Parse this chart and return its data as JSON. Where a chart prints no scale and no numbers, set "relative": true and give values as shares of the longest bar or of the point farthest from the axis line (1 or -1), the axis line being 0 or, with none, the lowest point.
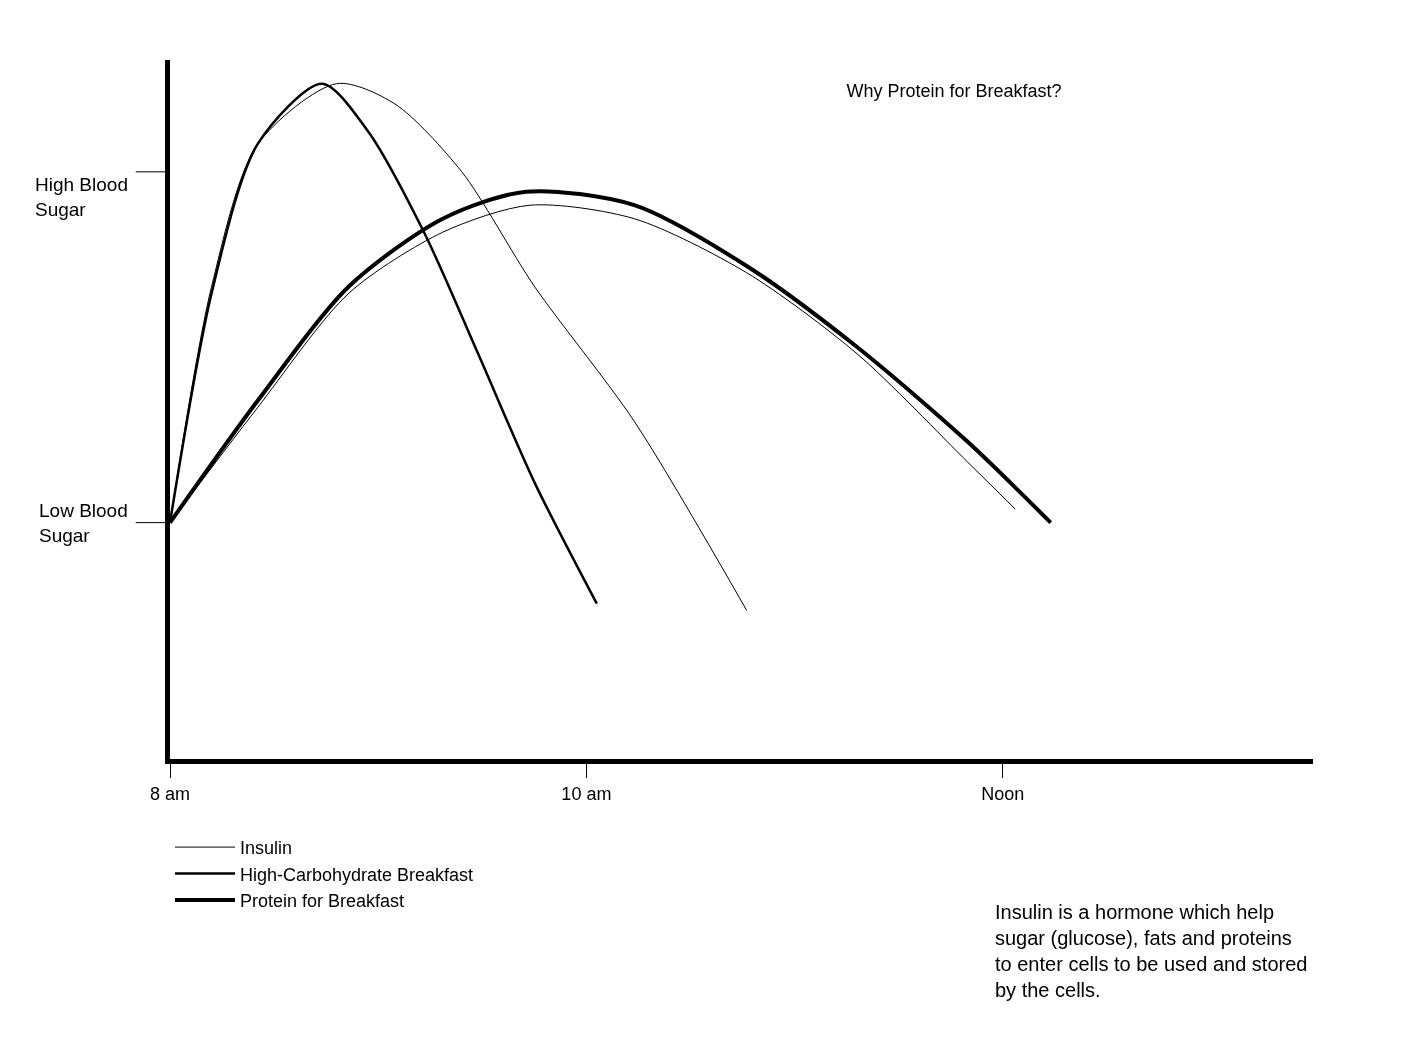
{
  "chart_data": {
    "type": "line",
    "title": "Why Protein for Breakfast?",
    "relative": true,
    "xlim": [
      8,
      13.49
    ],
    "xticks": [
      {
        "value": 8,
        "label": "8 am"
      },
      {
        "value": 10,
        "label": "10 am"
      },
      {
        "value": 12,
        "label": "Noon"
      }
    ],
    "legend": "bottom left",
    "marker": "none",
    "line_style": "solid",
    "series": [
      {
        "name": "Insulin",
        "color": "#000000",
        "x": [
          8,
          8.2,
          8.42,
          8.8,
          9.08,
          9.4,
          9.75,
          10.23,
          10.77,
          null,
          8,
          8.42,
          8.86,
          9.31,
          9.73,
          10.23,
          10.77,
          11.3,
          11.83,
          12.06
        ],
        "values": [
          0.35,
          0.7,
          0.91,
          1.0,
          0.97,
          0.87,
          0.7,
          0.5,
          0.22,
          null,
          0.35,
          0.52,
          0.69,
          0.78,
          0.82,
          0.8,
          0.72,
          0.6,
          0.44,
          0.37
        ]
      },
      {
        "name": "High-Carbohydrate Breakfast",
        "color": "#000000",
        "x": [
          8,
          8.2,
          8.42,
          8.73,
          8.95,
          9.22,
          9.48,
          9.75,
          10.05
        ],
        "values": [
          0.35,
          0.69,
          0.91,
          1.0,
          0.93,
          0.78,
          0.6,
          0.41,
          0.23
        ]
      },
      {
        "name": "Protein for Breakfast",
        "color": "#000000",
        "x": [
          8,
          8.42,
          8.86,
          9.31,
          9.71,
          10.23,
          10.77,
          11.3,
          11.83,
          12.23
        ],
        "values": [
          0.35,
          0.53,
          0.7,
          0.8,
          0.84,
          0.82,
          0.73,
          0.61,
          0.47,
          0.35
        ]
      }
    ],
    "annotations": [
      "High Blood\nSugar",
      {
        "text": "Low Blood\nSugar",
        "x": 8,
        "y": 0.35
      },
      "Insulin is a hormone which help sugar (glucose), fats and proteins to enter cells to be used and stored by the cells."
    ]
  }
}
